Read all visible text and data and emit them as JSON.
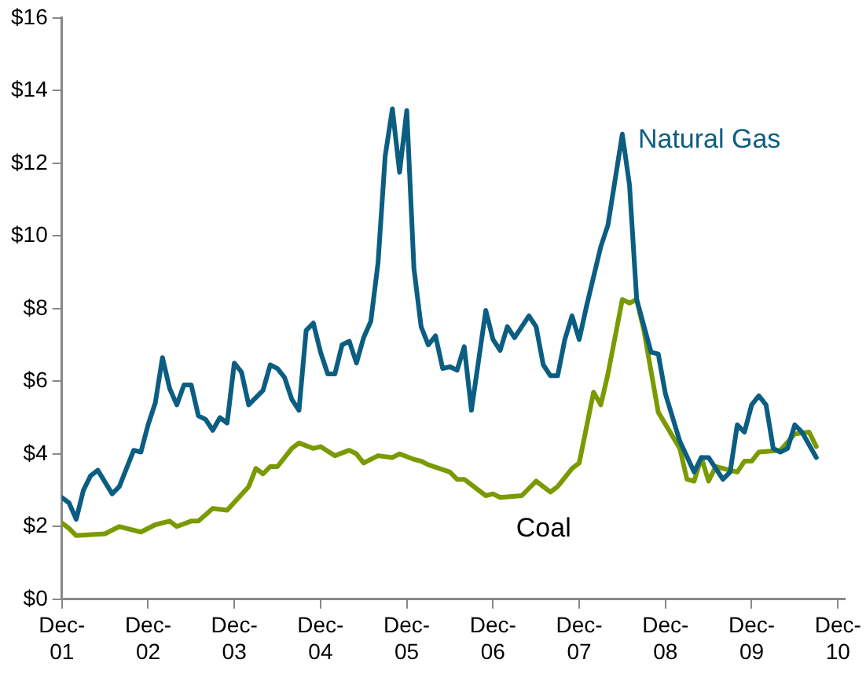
{
  "chart_data": {
    "type": "line",
    "xlim": [
      "2001-12",
      "2011-01"
    ],
    "xticks": [
      {
        "value": "2001-12",
        "label": "Dec-01"
      },
      {
        "value": "2002-12",
        "label": "Dec-02"
      },
      {
        "value": "2003-12",
        "label": "Dec-03"
      },
      {
        "value": "2004-12",
        "label": "Dec-04"
      },
      {
        "value": "2005-12",
        "label": "Dec-05"
      },
      {
        "value": "2006-12",
        "label": "Dec-06"
      },
      {
        "value": "2007-12",
        "label": "Dec-07"
      },
      {
        "value": "2008-12",
        "label": "Dec-08"
      },
      {
        "value": "2009-12",
        "label": "Dec-09"
      },
      {
        "value": "2010-12",
        "label": "Dec-10"
      }
    ],
    "ylim": [
      0,
      16
    ],
    "yticks": [
      {
        "value": 0,
        "label": "$0"
      },
      {
        "value": 2,
        "label": "$2"
      },
      {
        "value": 4,
        "label": "$4"
      },
      {
        "value": 6,
        "label": "$6"
      },
      {
        "value": 8,
        "label": "$8"
      },
      {
        "value": 10,
        "label": "$10"
      },
      {
        "value": 12,
        "label": "$12"
      },
      {
        "value": 14,
        "label": "$14"
      },
      {
        "value": 16,
        "label": "$16"
      }
    ],
    "grid": false,
    "legend": false,
    "marker": "none",
    "line_style": "solid",
    "series": [
      {
        "name": "Natural Gas",
        "color": "#0b5e82",
        "x": [
          "2001-12",
          "2002-01",
          "2002-02",
          "2002-03",
          "2002-04",
          "2002-05",
          "2002-07",
          "2002-08",
          "2002-10",
          "2002-11",
          "2002-12",
          "2003-01",
          "2003-02",
          "2003-03",
          "2003-04",
          "2003-05",
          "2003-06",
          "2003-07",
          "2003-08",
          "2003-09",
          "2003-10",
          "2003-11",
          "2003-12",
          "2004-01",
          "2004-02",
          "2004-04",
          "2004-05",
          "2004-06",
          "2004-07",
          "2004-08",
          "2004-09",
          "2004-10",
          "2004-11",
          "2004-12",
          "2005-01",
          "2005-02",
          "2005-03",
          "2005-04",
          "2005-05",
          "2005-06",
          "2005-07",
          "2005-08",
          "2005-09",
          "2005-10",
          "2005-11",
          "2005-12",
          "2006-01",
          "2006-02",
          "2006-03",
          "2006-04",
          "2006-05",
          "2006-06",
          "2006-07",
          "2006-08",
          "2006-09",
          "2006-11",
          "2006-12",
          "2007-01",
          "2007-02",
          "2007-03",
          "2007-05",
          "2007-06",
          "2007-07",
          "2007-08",
          "2007-09",
          "2007-10",
          "2007-11",
          "2007-12",
          "2008-01",
          "2008-03",
          "2008-04",
          "2008-06",
          "2008-07",
          "2008-08",
          "2008-10",
          "2008-11",
          "2008-12",
          "2009-02",
          "2009-04",
          "2009-05",
          "2009-06",
          "2009-08",
          "2009-09",
          "2009-10",
          "2009-11",
          "2009-12",
          "2010-01",
          "2010-02",
          "2010-03",
          "2010-04",
          "2010-05",
          "2010-06",
          "2010-07",
          "2010-09"
        ],
        "values": [
          2.8,
          2.65,
          2.2,
          3.0,
          3.4,
          3.55,
          2.9,
          3.1,
          4.1,
          4.05,
          4.8,
          5.4,
          6.65,
          5.8,
          5.35,
          5.9,
          5.9,
          5.05,
          4.95,
          4.65,
          5.0,
          4.85,
          6.5,
          6.25,
          5.35,
          5.75,
          6.45,
          6.35,
          6.1,
          5.5,
          5.2,
          7.4,
          7.6,
          6.8,
          6.2,
          6.2,
          7.0,
          7.1,
          6.5,
          7.2,
          7.65,
          9.25,
          12.2,
          13.5,
          11.75,
          13.45,
          9.1,
          7.5,
          7.0,
          7.25,
          6.35,
          6.4,
          6.3,
          6.95,
          5.2,
          7.95,
          7.15,
          6.85,
          7.5,
          7.2,
          7.8,
          7.5,
          6.45,
          6.15,
          6.15,
          7.15,
          7.8,
          7.15,
          8.05,
          9.7,
          10.3,
          12.8,
          11.4,
          8.25,
          6.8,
          6.75,
          5.65,
          4.35,
          3.5,
          3.9,
          3.9,
          3.3,
          3.5,
          4.8,
          4.6,
          5.35,
          5.6,
          5.35,
          4.15,
          4.05,
          4.15,
          4.8,
          4.6,
          3.9
        ]
      },
      {
        "name": "Coal",
        "color": "#7a9a01",
        "x": [
          "2001-12",
          "2002-01",
          "2002-02",
          "2002-06",
          "2002-08",
          "2002-11",
          "2003-01",
          "2003-03",
          "2003-04",
          "2003-06",
          "2003-07",
          "2003-09",
          "2003-11",
          "2004-02",
          "2004-03",
          "2004-04",
          "2004-05",
          "2004-06",
          "2004-08",
          "2004-09",
          "2004-11",
          "2004-12",
          "2005-02",
          "2005-04",
          "2005-05",
          "2005-06",
          "2005-08",
          "2005-10",
          "2005-11",
          "2006-01",
          "2006-02",
          "2006-03",
          "2006-06",
          "2006-07",
          "2006-08",
          "2006-11",
          "2006-12",
          "2007-01",
          "2007-04",
          "2007-06",
          "2007-08",
          "2007-09",
          "2007-11",
          "2007-12",
          "2008-02",
          "2008-03",
          "2008-04",
          "2008-06",
          "2008-07",
          "2008-08",
          "2008-09",
          "2008-11",
          "2009-02",
          "2009-03",
          "2009-04",
          "2009-05",
          "2009-06",
          "2009-07",
          "2009-10",
          "2009-11",
          "2009-12",
          "2010-01",
          "2010-04",
          "2010-06",
          "2010-08",
          "2010-09"
        ],
        "values": [
          2.1,
          1.95,
          1.75,
          1.8,
          2.0,
          1.85,
          2.05,
          2.15,
          2.0,
          2.15,
          2.15,
          2.5,
          2.45,
          3.1,
          3.6,
          3.45,
          3.65,
          3.65,
          4.15,
          4.3,
          4.15,
          4.2,
          3.95,
          4.1,
          4.0,
          3.75,
          3.95,
          3.9,
          4.0,
          3.85,
          3.8,
          3.7,
          3.5,
          3.3,
          3.3,
          2.85,
          2.9,
          2.8,
          2.85,
          3.25,
          2.95,
          3.1,
          3.6,
          3.75,
          5.7,
          5.35,
          6.2,
          8.25,
          8.15,
          8.25,
          7.4,
          5.15,
          4.15,
          3.3,
          3.25,
          3.9,
          3.25,
          3.65,
          3.5,
          3.8,
          3.8,
          4.05,
          4.1,
          4.55,
          4.6,
          4.2
        ]
      }
    ]
  }
}
